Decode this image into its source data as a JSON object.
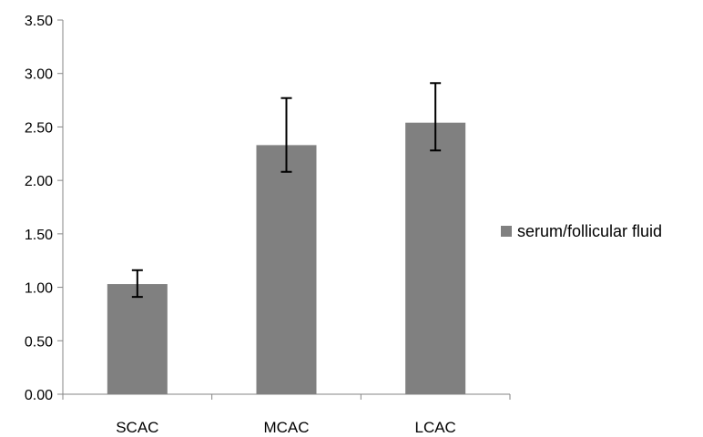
{
  "chart_data": {
    "type": "bar",
    "categories": [
      "SCAC",
      "MCAC",
      "LCAC"
    ],
    "series": [
      {
        "name": "serum/follicular fluid",
        "values": [
          1.03,
          2.33,
          2.54
        ],
        "error_low": [
          0.91,
          2.08,
          2.28
        ],
        "error_high": [
          1.16,
          2.77,
          2.91
        ]
      }
    ],
    "ylim": [
      0,
      3.5
    ],
    "yticks": [
      "0.00",
      "0.50",
      "1.00",
      "1.50",
      "2.00",
      "2.50",
      "3.00",
      "3.50"
    ],
    "grid": false,
    "legend_position": "right",
    "bar_color": "#808080",
    "error_bar_color": "#000000"
  }
}
